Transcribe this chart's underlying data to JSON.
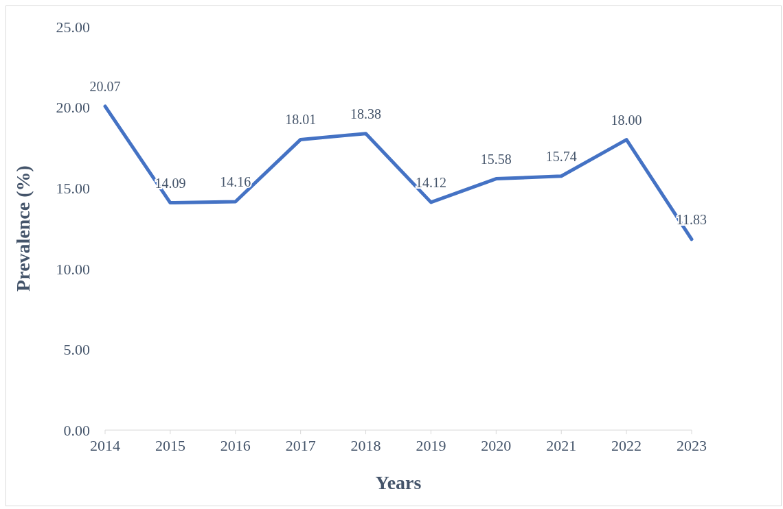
{
  "chart_data": {
    "type": "line",
    "xlabel": "Years",
    "ylabel": "Prevalence (%)",
    "categories": [
      "2014",
      "2015",
      "2016",
      "2017",
      "2018",
      "2019",
      "2020",
      "2021",
      "2022",
      "2023"
    ],
    "series": [
      {
        "color": "#4472c4",
        "values": [
          20.07,
          14.09,
          14.16,
          18.01,
          18.38,
          14.12,
          15.58,
          15.74,
          18.0,
          11.83
        ],
        "value_labels": [
          "20.07",
          "14.09",
          "14.16",
          "18.01",
          "18.38",
          "14.12",
          "15.58",
          "15.74",
          "18.00",
          "11.83"
        ]
      }
    ],
    "ylim": [
      0,
      25
    ],
    "yticks": [
      {
        "value": 0,
        "label": "0.00"
      },
      {
        "value": 5,
        "label": "5.00"
      },
      {
        "value": 10,
        "label": "10.00"
      },
      {
        "value": 15,
        "label": "15.00"
      },
      {
        "value": 20,
        "label": "20.00"
      },
      {
        "value": 25,
        "label": "25.00"
      }
    ]
  }
}
